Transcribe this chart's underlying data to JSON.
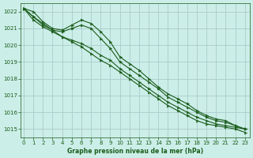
{
  "title": "Graphe pression niveau de la mer (hPa)",
  "bg_color": "#cceee8",
  "grid_color": "#aacccc",
  "line_color": "#1a5c1a",
  "text_color": "#1a5c1a",
  "x_min": 0,
  "x_max": 23,
  "y_min": 1014.5,
  "y_max": 1022.5,
  "y_ticks": [
    1015,
    1016,
    1017,
    1018,
    1019,
    1020,
    1021,
    1022
  ],
  "x_ticks": [
    0,
    1,
    2,
    3,
    4,
    5,
    6,
    7,
    8,
    9,
    10,
    11,
    12,
    13,
    14,
    15,
    16,
    17,
    18,
    19,
    20,
    21,
    22,
    23
  ],
  "series": [
    [
      1022.2,
      1021.7,
      1021.3,
      1020.9,
      1020.5,
      1020.2,
      1019.9,
      1019.5,
      1019.1,
      1018.8,
      1018.4,
      1018.0,
      1017.6,
      1017.2,
      1016.8,
      1016.4,
      1016.1,
      1015.8,
      1015.5,
      1015.3,
      1015.2,
      1015.1,
      1015.0,
      1014.8
    ],
    [
      1022.2,
      1021.5,
      1021.1,
      1020.8,
      1020.5,
      1020.3,
      1020.1,
      1019.8,
      1019.4,
      1019.1,
      1018.6,
      1018.2,
      1017.8,
      1017.4,
      1017.0,
      1016.6,
      1016.3,
      1016.0,
      1015.7,
      1015.5,
      1015.3,
      1015.2,
      1015.1,
      1015.0
    ],
    [
      1022.2,
      1021.7,
      1021.2,
      1020.9,
      1020.8,
      1021.0,
      1021.2,
      1021.0,
      1020.4,
      1019.8,
      1019.0,
      1018.6,
      1018.2,
      1017.8,
      1017.4,
      1016.9,
      1016.6,
      1016.3,
      1016.0,
      1015.7,
      1015.5,
      1015.4,
      1015.2,
      1015.0
    ],
    [
      1022.2,
      1022.0,
      1021.4,
      1021.0,
      1020.9,
      1021.2,
      1021.5,
      1021.3,
      1020.8,
      1020.2,
      1019.3,
      1018.9,
      1018.5,
      1018.0,
      1017.5,
      1017.1,
      1016.8,
      1016.5,
      1016.1,
      1015.8,
      1015.6,
      1015.5,
      1015.2,
      1015.0
    ]
  ]
}
